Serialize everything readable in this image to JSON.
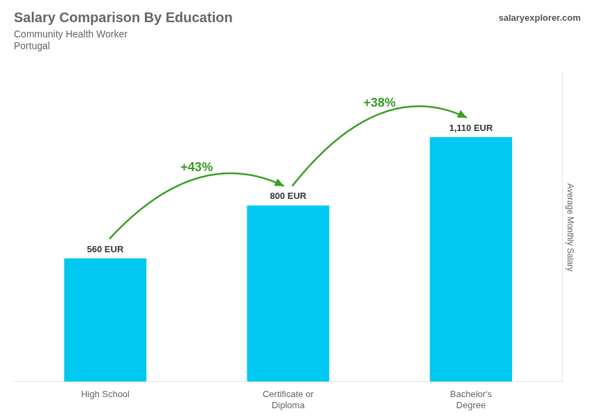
{
  "chart_data": {
    "type": "bar",
    "title": "Salary Comparison By Education",
    "subtitle": [
      "Community Health Worker",
      "Portugal"
    ],
    "annotations": [
      "salaryexplorer.com",
      "+43%",
      "+38%"
    ],
    "categories": [
      "High School",
      "Certificate or\nDiploma",
      "Bachelor's\nDegree"
    ],
    "values": [
      560,
      800,
      1110
    ],
    "value_labels": [
      "560 EUR",
      "800 EUR",
      "1,110 EUR"
    ],
    "color": "#00c8f0",
    "ylabel": "Average Monthly Salary",
    "ylim": [
      0,
      1400
    ],
    "grid": false,
    "data_labels": true,
    "tick_labels": "x"
  }
}
